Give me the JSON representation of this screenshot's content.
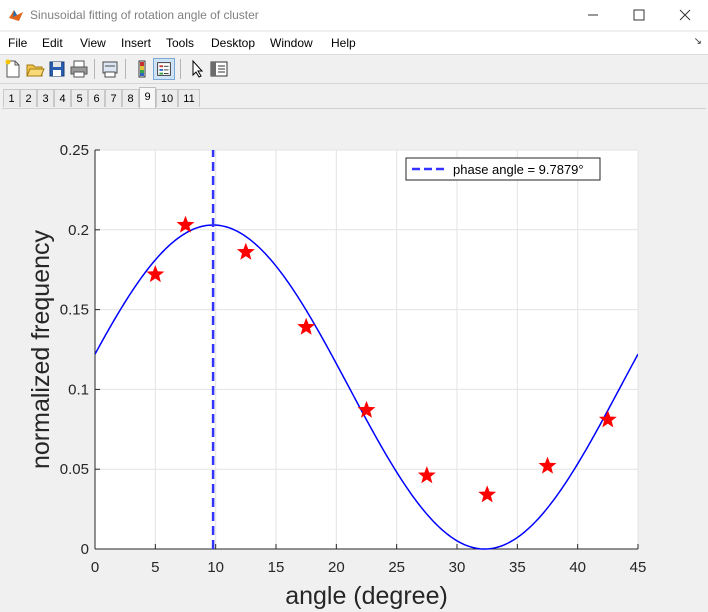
{
  "window": {
    "title": "Sinusoidal fitting of rotation angle of cluster",
    "minimize_glyph": "—",
    "maximize_glyph": "☐",
    "close_glyph": "✕"
  },
  "menu": {
    "items": [
      "File",
      "Edit",
      "View",
      "Insert",
      "Tools",
      "Desktop",
      "Window",
      "Help"
    ],
    "dock_glyph": "↘"
  },
  "toolbar": {
    "buttons": [
      "new-figure-icon",
      "open-file-icon",
      "save-icon",
      "print-icon",
      "print-preview-icon",
      "colorbar-icon",
      "legend-icon",
      "pointer-icon",
      "property-inspector-icon"
    ],
    "active": "legend-icon"
  },
  "figure_tabs": {
    "labels": [
      "1",
      "2",
      "3",
      "4",
      "5",
      "6",
      "7",
      "8",
      "9",
      "10",
      "11"
    ],
    "selected": "9"
  },
  "chart_data": {
    "type": "scatter",
    "xlabel": "angle (degree)",
    "ylabel": "normalized frequency",
    "xlim": [
      0,
      45
    ],
    "ylim": [
      0,
      0.25
    ],
    "xticks": [
      "0",
      "5",
      "10",
      "15",
      "20",
      "25",
      "30",
      "35",
      "40",
      "45"
    ],
    "yticks": [
      "0",
      "0.05",
      "0.1",
      "0.15",
      "0.2",
      "0.25"
    ],
    "grid": true,
    "legend": {
      "entries": [
        "phase angle = 9.7879°"
      ],
      "location": "top-right"
    },
    "series": [
      {
        "marker": "pentagram",
        "color": "#ff0000",
        "x": [
          5,
          7.5,
          12.5,
          17.5,
          22.5,
          27.5,
          32.5,
          37.5,
          42.5
        ],
        "y": [
          0.172,
          0.203,
          0.186,
          0.139,
          0.087,
          0.046,
          0.034,
          0.052,
          0.081
        ]
      },
      {
        "line": "solid",
        "color": "#0000ff",
        "function": "0.1015 + 0.1015*cos(2*pi*(x - 9.7879)/45)",
        "x": [
          0,
          5,
          9.8,
          15,
          20,
          25,
          32.3,
          40,
          45
        ],
        "y": [
          0.122,
          0.18,
          0.203,
          0.181,
          0.12,
          0.052,
          0.0,
          0.053,
          0.121
        ]
      },
      {
        "name": "phase angle = 9.7879°",
        "line": "dashed",
        "color": "#3333ff",
        "x": [
          9.7879,
          9.7879
        ],
        "y": [
          0,
          0.25
        ]
      }
    ]
  }
}
